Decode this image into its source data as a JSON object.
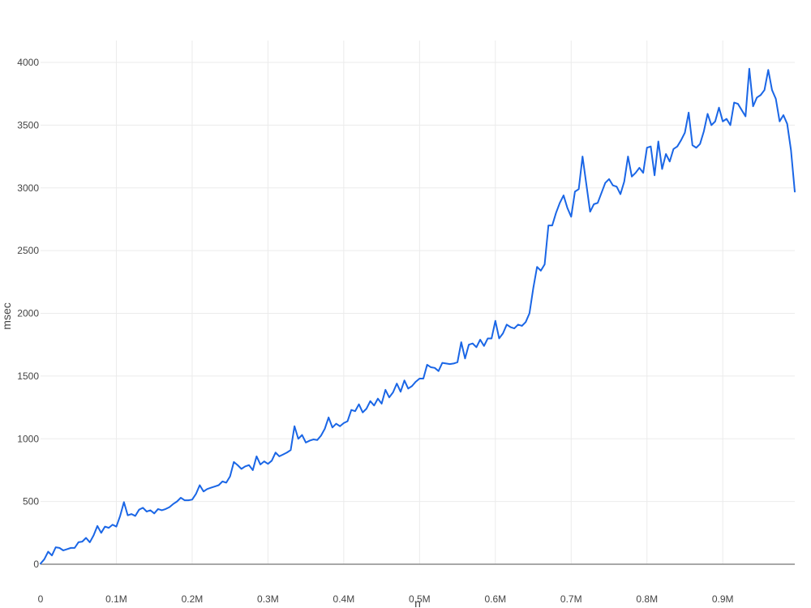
{
  "chart_data": {
    "type": "line",
    "title": "",
    "xlabel": "n",
    "ylabel": "msec",
    "xlim": [
      0,
      995000
    ],
    "ylim": [
      0,
      4000
    ],
    "grid": true,
    "legend": "none",
    "line_color": "#1a66e6",
    "x_ticks": [
      {
        "value": 0,
        "label": "0"
      },
      {
        "value": 100000,
        "label": "0.1M"
      },
      {
        "value": 200000,
        "label": "0.2M"
      },
      {
        "value": 300000,
        "label": "0.3M"
      },
      {
        "value": 400000,
        "label": "0.4M"
      },
      {
        "value": 500000,
        "label": "0.5M"
      },
      {
        "value": 600000,
        "label": "0.6M"
      },
      {
        "value": 700000,
        "label": "0.7M"
      },
      {
        "value": 800000,
        "label": "0.8M"
      },
      {
        "value": 900000,
        "label": "0.9M"
      }
    ],
    "y_ticks": [
      {
        "value": 0,
        "label": "0"
      },
      {
        "value": 500,
        "label": "500"
      },
      {
        "value": 1000,
        "label": "1000"
      },
      {
        "value": 1500,
        "label": "1500"
      },
      {
        "value": 2000,
        "label": "2000"
      },
      {
        "value": 2500,
        "label": "2500"
      },
      {
        "value": 3000,
        "label": "3000"
      },
      {
        "value": 3500,
        "label": "3500"
      },
      {
        "value": 4000,
        "label": "4000"
      }
    ],
    "x": [
      0,
      5000,
      10000,
      15000,
      20000,
      25000,
      30000,
      35000,
      40000,
      45000,
      50000,
      55000,
      60000,
      65000,
      70000,
      75000,
      80000,
      85000,
      90000,
      95000,
      100000,
      105000,
      110000,
      115000,
      120000,
      125000,
      130000,
      135000,
      140000,
      145000,
      150000,
      155000,
      160000,
      165000,
      170000,
      175000,
      180000,
      185000,
      190000,
      195000,
      200000,
      205000,
      210000,
      215000,
      220000,
      225000,
      230000,
      235000,
      240000,
      245000,
      250000,
      255000,
      260000,
      265000,
      270000,
      275000,
      280000,
      285000,
      290000,
      295000,
      300000,
      305000,
      310000,
      315000,
      320000,
      325000,
      330000,
      335000,
      340000,
      345000,
      350000,
      355000,
      360000,
      365000,
      370000,
      375000,
      380000,
      385000,
      390000,
      395000,
      400000,
      405000,
      410000,
      415000,
      420000,
      425000,
      430000,
      435000,
      440000,
      445000,
      450000,
      455000,
      460000,
      465000,
      470000,
      475000,
      480000,
      485000,
      490000,
      495000,
      500000,
      505000,
      510000,
      515000,
      520000,
      525000,
      530000,
      535000,
      540000,
      545000,
      550000,
      555000,
      560000,
      565000,
      570000,
      575000,
      580000,
      585000,
      590000,
      595000,
      600000,
      605000,
      610000,
      615000,
      620000,
      625000,
      630000,
      635000,
      640000,
      645000,
      650000,
      655000,
      660000,
      665000,
      670000,
      675000,
      680000,
      685000,
      690000,
      695000,
      700000,
      705000,
      710000,
      715000,
      720000,
      725000,
      730000,
      735000,
      740000,
      745000,
      750000,
      755000,
      760000,
      765000,
      770000,
      775000,
      780000,
      785000,
      790000,
      795000,
      800000,
      805000,
      810000,
      815000,
      820000,
      825000,
      830000,
      835000,
      840000,
      845000,
      850000,
      855000,
      860000,
      865000,
      870000,
      875000,
      880000,
      885000,
      890000,
      895000,
      900000,
      905000,
      910000,
      915000,
      920000,
      925000,
      930000,
      935000,
      940000,
      945000,
      950000,
      955000,
      960000,
      965000,
      970000,
      975000,
      980000,
      985000,
      990000,
      995000
    ],
    "series": [
      {
        "values": [
          5,
          40,
          100,
          70,
          135,
          130,
          110,
          120,
          130,
          130,
          175,
          180,
          210,
          175,
          230,
          305,
          250,
          300,
          290,
          315,
          300,
          385,
          495,
          390,
          400,
          385,
          435,
          450,
          420,
          430,
          405,
          440,
          430,
          440,
          455,
          480,
          500,
          530,
          510,
          510,
          515,
          560,
          630,
          580,
          600,
          610,
          620,
          630,
          660,
          650,
          700,
          815,
          790,
          760,
          780,
          790,
          750,
          860,
          795,
          820,
          800,
          825,
          890,
          860,
          875,
          890,
          910,
          1100,
          1000,
          1030,
          970,
          985,
          995,
          990,
          1025,
          1080,
          1170,
          1090,
          1120,
          1100,
          1125,
          1140,
          1230,
          1220,
          1275,
          1210,
          1240,
          1300,
          1265,
          1320,
          1280,
          1390,
          1330,
          1370,
          1440,
          1375,
          1465,
          1400,
          1420,
          1455,
          1480,
          1480,
          1590,
          1570,
          1565,
          1540,
          1605,
          1600,
          1595,
          1600,
          1610,
          1770,
          1640,
          1750,
          1760,
          1730,
          1790,
          1740,
          1800,
          1800,
          1940,
          1800,
          1840,
          1910,
          1890,
          1880,
          1910,
          1900,
          1930,
          2000,
          2200,
          2370,
          2340,
          2390,
          2700,
          2700,
          2800,
          2880,
          2940,
          2840,
          2770,
          2970,
          2990,
          3250,
          3030,
          2810,
          2870,
          2880,
          2960,
          3040,
          3070,
          3020,
          3010,
          2950,
          3050,
          3250,
          3090,
          3120,
          3160,
          3120,
          3320,
          3330,
          3100,
          3370,
          3150,
          3270,
          3210,
          3310,
          3330,
          3380,
          3440,
          3600,
          3340,
          3320,
          3350,
          3450,
          3590,
          3500,
          3530,
          3640,
          3530,
          3550,
          3500,
          3680,
          3670,
          3620,
          3570,
          3950,
          3650,
          3720,
          3740,
          3780,
          3940,
          3780,
          3710,
          3530,
          3580,
          3510,
          3300,
          2970
        ]
      }
    ]
  }
}
